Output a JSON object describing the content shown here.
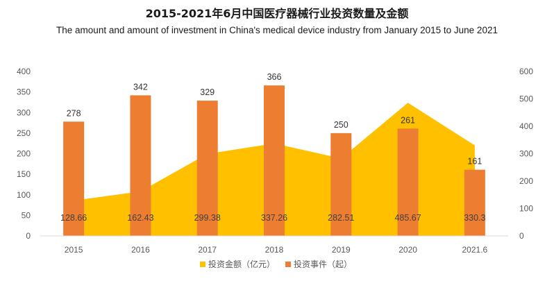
{
  "title": "2015-2021年6月中国医疗器械行业投资数量及金额",
  "subtitle": "The amount and amount of investment in China's medical device industry from January 2015 to June 2021",
  "chart_data": {
    "type": "bar",
    "categories": [
      "2015",
      "2016",
      "2017",
      "2018",
      "2019",
      "2020",
      "2021.6"
    ],
    "series": [
      {
        "name": "投资金额（亿元）",
        "type": "area",
        "axis": "right",
        "color": "#FFC000",
        "values": [
          128.66,
          162.43,
          299.38,
          337.26,
          282.51,
          485.67,
          330.3
        ]
      },
      {
        "name": "投资事件（起）",
        "type": "bar",
        "axis": "left",
        "color": "#ED7D31",
        "values": [
          278,
          342,
          329,
          366,
          250,
          261,
          161
        ]
      }
    ],
    "left_axis": {
      "ylim": [
        0,
        400
      ],
      "ticks": [
        0,
        50,
        100,
        150,
        200,
        250,
        300,
        350,
        400
      ]
    },
    "right_axis": {
      "ylim": [
        0,
        600
      ],
      "ticks": [
        0,
        100,
        200,
        300,
        400,
        500,
        600
      ]
    },
    "grid": false,
    "legend": "bottom"
  }
}
